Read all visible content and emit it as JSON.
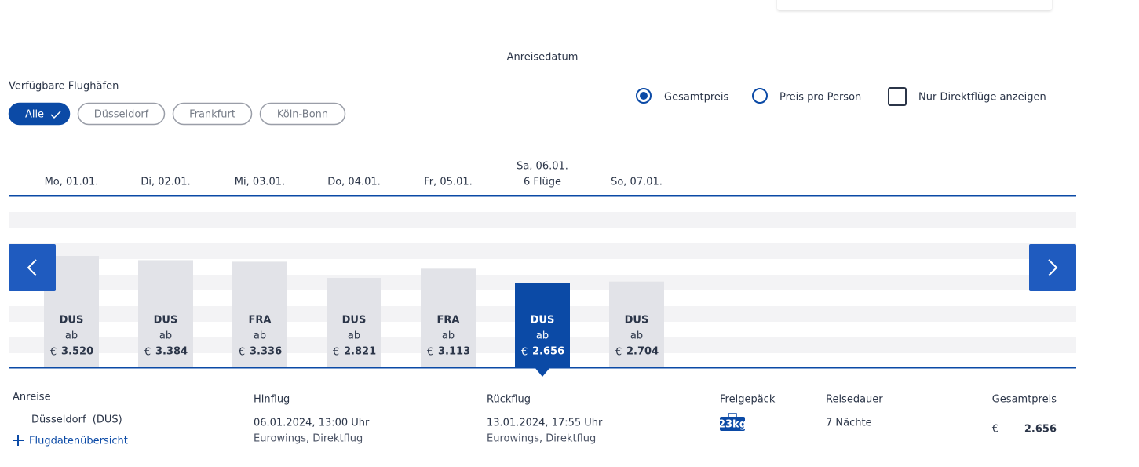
{
  "header": {
    "title": "Anreisedatum"
  },
  "filters": {
    "label": "Verfügbare Flughäfen",
    "airports": [
      "Alle",
      "Düsseldorf",
      "Frankfurt",
      "Köln-Bonn"
    ],
    "selected": 0
  },
  "options": {
    "price_modes": [
      "Gesamtpreis",
      "Preis pro Person"
    ],
    "selected_price_mode": 0,
    "direct_only": "Nur Direktflüge anzeigen",
    "direct_only_checked": false
  },
  "chart_data": {
    "type": "bar",
    "categories": [
      "Mo, 01.01.",
      "Di, 02.01.",
      "Mi, 03.01.",
      "Do, 04.01.",
      "Fr, 05.01.",
      "Sa, 06.01.",
      "So, 07.01."
    ],
    "selected": 5,
    "selected_note": "6 Flüge",
    "airport_codes": [
      "DUS",
      "DUS",
      "FRA",
      "DUS",
      "FRA",
      "DUS",
      "DUS"
    ],
    "prefix": "ab",
    "currency": "€",
    "values": [
      3520,
      3384,
      3336,
      2821,
      3113,
      2656,
      2704
    ],
    "value_labels": [
      "3.520",
      "3.384",
      "3.336",
      "2.821",
      "3.113",
      "2.656",
      "2.704"
    ],
    "color": "#e2e3e8",
    "selected_color": "#0b4aa6"
  },
  "details": {
    "arrival": {
      "label": "Anreise",
      "airport": "Düsseldorf  (DUS)",
      "link": "Flugdatenübersicht"
    },
    "outbound": {
      "label": "Hinflug",
      "datetime": "06.01.2024, 13:00 Uhr",
      "carrier": "Eurowings, Direktflug"
    },
    "return": {
      "label": "Rückflug",
      "datetime": "13.01.2024, 17:55 Uhr",
      "carrier": "Eurowings, Direktflug"
    },
    "baggage": {
      "label": "Freigepäck",
      "badge": "23kg"
    },
    "duration": {
      "label": "Reisedauer",
      "value": "7 Nächte"
    },
    "total": {
      "label": "Gesamtpreis",
      "currency": "€",
      "amount": "2.656"
    }
  }
}
